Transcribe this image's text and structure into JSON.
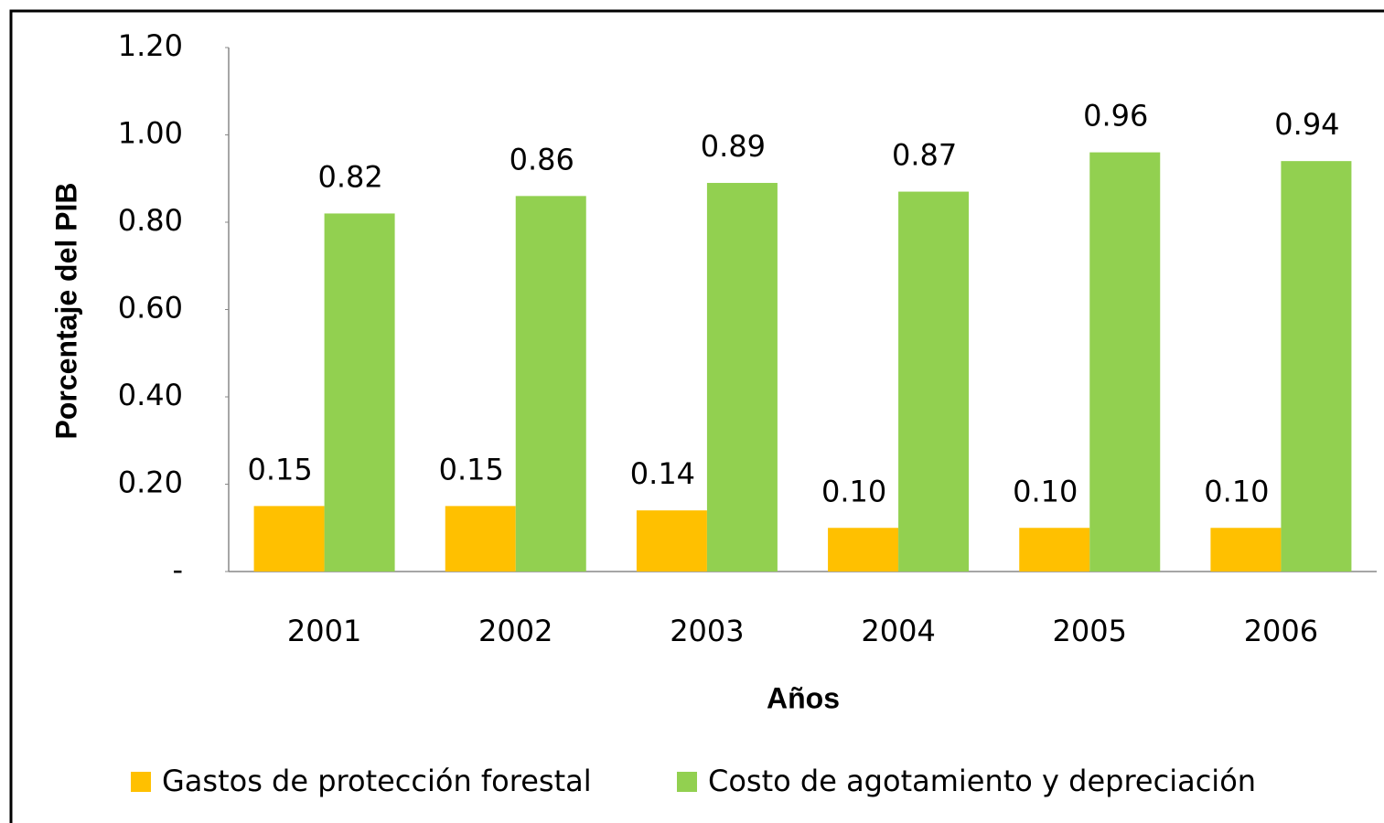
{
  "chart_data": {
    "type": "bar",
    "x_label": "Años",
    "y_label": "Porcentaje del PIB",
    "categories": [
      "2001",
      "2002",
      "2003",
      "2004",
      "2005",
      "2006"
    ],
    "series": [
      {
        "name": "Gastos de protección forestal",
        "color": "#ffc000",
        "values": [
          0.15,
          0.15,
          0.14,
          0.1,
          0.1,
          0.1
        ],
        "value_labels": [
          "0.15",
          "0.15",
          "0.14",
          "0.10",
          "0.10",
          "0.10"
        ]
      },
      {
        "name": "Costo de agotamiento y depreciación",
        "color": "#92d050",
        "values": [
          0.82,
          0.86,
          0.89,
          0.87,
          0.96,
          0.94
        ],
        "value_labels": [
          "0.82",
          "0.86",
          "0.89",
          "0.87",
          "0.96",
          "0.94"
        ]
      }
    ],
    "ylim": [
      0,
      1.2
    ],
    "yticks": [
      {
        "value": 0,
        "label": "-"
      },
      {
        "value": 0.2,
        "label": "0.20"
      },
      {
        "value": 0.4,
        "label": "0.40"
      },
      {
        "value": 0.6,
        "label": "0.60"
      },
      {
        "value": 0.8,
        "label": "0.80"
      },
      {
        "value": 1.0,
        "label": "1.00"
      },
      {
        "value": 1.2,
        "label": "1.20"
      }
    ],
    "grid": false,
    "legend": "bottom"
  }
}
